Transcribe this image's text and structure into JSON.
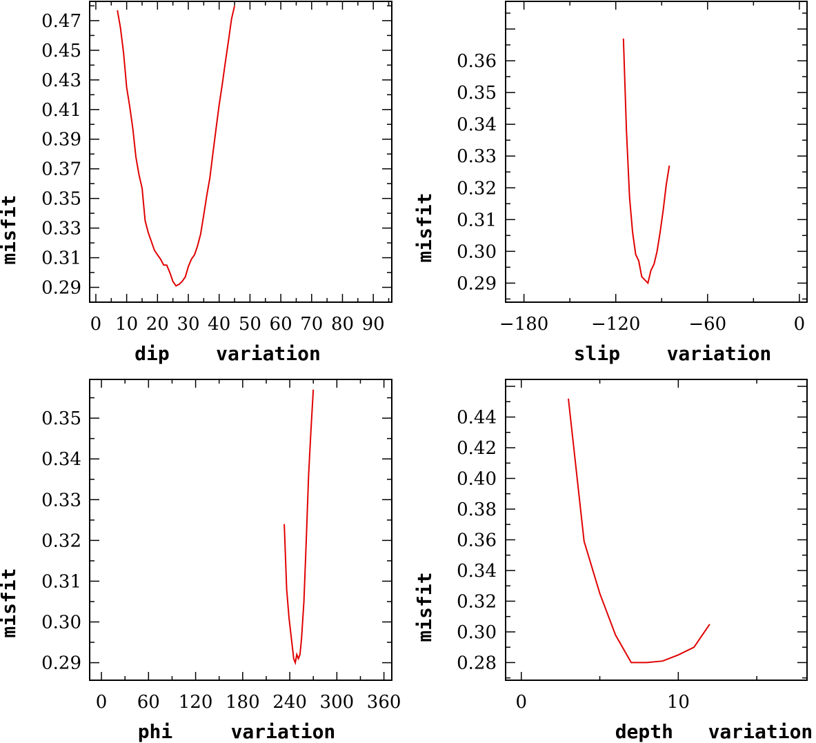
{
  "chart_data": [
    {
      "id": "dip",
      "type": "line",
      "xlabel": "dip    variation",
      "ylabel": "misfit",
      "xlim": [
        -2,
        96
      ],
      "ylim": [
        0.28,
        0.483
      ],
      "xticks": [
        0,
        10,
        20,
        30,
        40,
        50,
        60,
        70,
        80,
        90
      ],
      "xtick_labels": [
        "0",
        "10",
        "20",
        "30",
        "40",
        "50",
        "60",
        "70",
        "80",
        "90"
      ],
      "yticks": [
        0.29,
        0.31,
        0.33,
        0.35,
        0.37,
        0.39,
        0.41,
        0.43,
        0.45,
        0.47
      ],
      "ytick_labels": [
        "0.29",
        "0.31",
        "0.33",
        "0.35",
        "0.37",
        "0.39",
        "0.41",
        "0.43",
        "0.45",
        "0.47"
      ],
      "series": [
        {
          "name": "dip",
          "color": "#e00000",
          "x": [
            7,
            8,
            9,
            10,
            11,
            12,
            13,
            14,
            15,
            16,
            17,
            18,
            19,
            20,
            21,
            22,
            23,
            24,
            25,
            26,
            27,
            28,
            29,
            30,
            31,
            32,
            33,
            34,
            35,
            36,
            37,
            38,
            39,
            40,
            41,
            42,
            43,
            44,
            45
          ],
          "y": [
            0.477,
            0.465,
            0.448,
            0.425,
            0.412,
            0.397,
            0.378,
            0.366,
            0.357,
            0.335,
            0.327,
            0.321,
            0.315,
            0.312,
            0.309,
            0.305,
            0.305,
            0.3,
            0.294,
            0.291,
            0.292,
            0.294,
            0.297,
            0.304,
            0.309,
            0.312,
            0.318,
            0.326,
            0.339,
            0.352,
            0.364,
            0.381,
            0.397,
            0.413,
            0.427,
            0.442,
            0.456,
            0.471,
            0.48
          ]
        }
      ]
    },
    {
      "id": "slip",
      "type": "line",
      "xlabel": "slip    variation",
      "ylabel": "misfit",
      "xlim": [
        -192,
        5
      ],
      "ylim": [
        0.284,
        0.3787
      ],
      "xticks": [
        -180,
        -120,
        -60,
        0
      ],
      "xtick_labels": [
        "−180",
        "−120",
        "−60",
        "0"
      ],
      "yticks": [
        0.29,
        0.3,
        0.31,
        0.32,
        0.33,
        0.34,
        0.35,
        0.36
      ],
      "ytick_labels": [
        "0.29",
        "0.30",
        "0.31",
        "0.32",
        "0.33",
        "0.34",
        "0.35",
        "0.36"
      ],
      "series": [
        {
          "name": "slip",
          "color": "#e00000",
          "x": [
            -115,
            -113,
            -111,
            -109,
            -107,
            -105,
            -103,
            -101,
            -99,
            -97,
            -95,
            -93,
            -91,
            -89,
            -87,
            -85
          ],
          "y": [
            0.367,
            0.338,
            0.317,
            0.306,
            0.299,
            0.297,
            0.292,
            0.291,
            0.29,
            0.294,
            0.296,
            0.3,
            0.306,
            0.313,
            0.321,
            0.327
          ]
        }
      ]
    },
    {
      "id": "phi",
      "type": "line",
      "xlabel": "phi     variation",
      "ylabel": "misfit",
      "xlim": [
        -15,
        370
      ],
      "ylim": [
        0.2857,
        0.3595
      ],
      "xticks": [
        0,
        60,
        120,
        180,
        240,
        300,
        360
      ],
      "xtick_labels": [
        "0",
        "60",
        "120",
        "180",
        "240",
        "300",
        "360"
      ],
      "yticks": [
        0.29,
        0.3,
        0.31,
        0.32,
        0.33,
        0.34,
        0.35
      ],
      "ytick_labels": [
        "0.29",
        "0.30",
        "0.31",
        "0.32",
        "0.33",
        "0.34",
        "0.35"
      ],
      "series": [
        {
          "name": "phi",
          "color": "#e00000",
          "x": [
            233,
            236,
            239,
            242,
            245,
            247,
            249,
            251,
            253,
            255,
            258,
            261,
            264,
            267,
            270
          ],
          "y": [
            0.324,
            0.308,
            0.301,
            0.296,
            0.291,
            0.29,
            0.292,
            0.291,
            0.292,
            0.296,
            0.305,
            0.32,
            0.336,
            0.347,
            0.357
          ]
        }
      ]
    },
    {
      "id": "depth",
      "type": "line",
      "xlabel": "depth   variation",
      "ylabel": "misfit",
      "xlim": [
        -1,
        18.2
      ],
      "ylim": [
        0.2685,
        0.4645
      ],
      "xticks": [
        0,
        10
      ],
      "xtick_labels": [
        "0",
        "10"
      ],
      "yticks": [
        0.28,
        0.3,
        0.32,
        0.34,
        0.36,
        0.38,
        0.4,
        0.42,
        0.44
      ],
      "ytick_labels": [
        "0.28",
        "0.30",
        "0.32",
        "0.34",
        "0.36",
        "0.38",
        "0.40",
        "0.42",
        "0.44"
      ],
      "series": [
        {
          "name": "depth",
          "color": "#e00000",
          "x": [
            3,
            4,
            5,
            6,
            7,
            8,
            9,
            10,
            11,
            12
          ],
          "y": [
            0.452,
            0.359,
            0.325,
            0.298,
            0.28,
            0.28,
            0.281,
            0.285,
            0.29,
            0.305
          ]
        }
      ]
    }
  ]
}
